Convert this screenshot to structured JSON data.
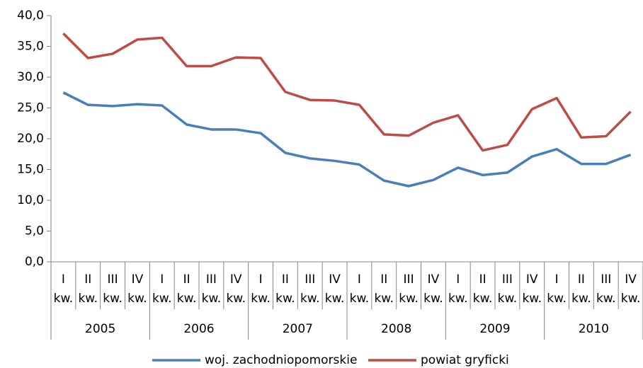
{
  "chart_data": {
    "type": "line",
    "categories": [
      "I kw.",
      "II kw.",
      "III kw.",
      "IV kw.",
      "I kw.",
      "II kw.",
      "III kw.",
      "IV kw.",
      "I kw.",
      "II kw.",
      "III kw.",
      "IV kw.",
      "I kw.",
      "II kw.",
      "III kw.",
      "IV kw.",
      "I kw.",
      "II kw.",
      "III kw.",
      "IV kw.",
      "I kw.",
      "II kw.",
      "III kw.",
      "IV kw."
    ],
    "category_groups": [
      "2005",
      "2006",
      "2007",
      "2008",
      "2009",
      "2010"
    ],
    "series": [
      {
        "name": "woj. zachodniopomorskie",
        "color": "#4a7ebb",
        "values": [
          27.5,
          25.5,
          25.3,
          25.6,
          25.4,
          22.3,
          21.5,
          21.5,
          20.9,
          17.7,
          16.8,
          16.4,
          15.8,
          13.2,
          12.3,
          13.3,
          15.3,
          14.1,
          14.5,
          17.1,
          18.3,
          15.9,
          15.9,
          17.4
        ]
      },
      {
        "name": "powiat gryficki",
        "color": "#be4b48",
        "values": [
          37.1,
          33.1,
          33.8,
          36.1,
          36.4,
          31.8,
          31.8,
          33.2,
          33.1,
          27.6,
          26.3,
          26.2,
          25.5,
          20.7,
          20.5,
          22.6,
          23.8,
          18.1,
          19.0,
          24.8,
          26.6,
          20.2,
          20.4,
          24.4
        ]
      }
    ],
    "ylim": [
      0,
      40
    ],
    "yticks": [
      {
        "value": 0,
        "label": "0,0"
      },
      {
        "value": 5,
        "label": "5,0"
      },
      {
        "value": 10,
        "label": "10,0"
      },
      {
        "value": 15,
        "label": "15,0"
      },
      {
        "value": 20,
        "label": "20,0"
      },
      {
        "value": 25,
        "label": "25,0"
      },
      {
        "value": 30,
        "label": "30,0"
      },
      {
        "value": 35,
        "label": "35,0"
      },
      {
        "value": 40,
        "label": "40,0"
      }
    ],
    "legend": "bottom"
  }
}
